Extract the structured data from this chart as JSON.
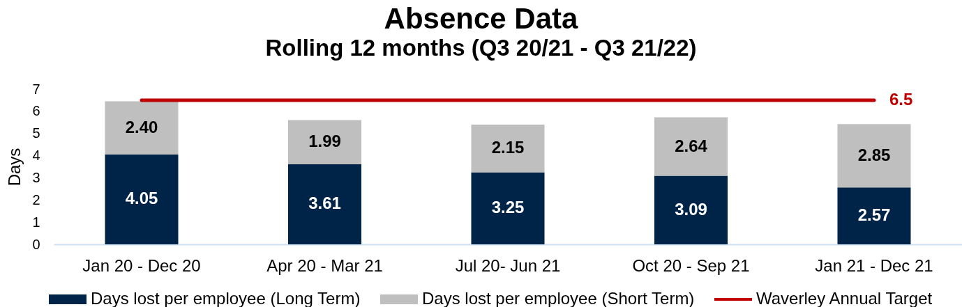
{
  "chart_data": {
    "type": "bar",
    "title": "Absence Data",
    "subtitle": "Rolling 12 months (Q3 20/21 - Q3 21/22)",
    "ylabel": "Days",
    "categories": [
      "Jan 20 - Dec 20",
      "Apr 20 - Mar 21",
      "Jul 20- Jun 21",
      "Oct 20 - Sep 21",
      "Jan 21 - Dec 21"
    ],
    "stacked": true,
    "series": [
      {
        "name": "Days lost per employee (Long Term)",
        "color": "#002448",
        "values": [
          4.05,
          3.61,
          3.25,
          3.09,
          2.57
        ],
        "value_labels": [
          "4.05",
          "3.61",
          "3.25",
          "3.09",
          "2.57"
        ]
      },
      {
        "name": "Days lost per employee (Short Term)",
        "color": "#bfbfbf",
        "values": [
          2.4,
          1.99,
          2.15,
          2.64,
          2.85
        ],
        "value_labels": [
          "2.40",
          "1.99",
          "2.15",
          "2.64",
          "2.85"
        ]
      },
      {
        "name": "Waverley Annual Target",
        "type": "line",
        "color": "#c00000",
        "values": [
          6.5,
          6.5,
          6.5,
          6.5,
          6.5
        ],
        "value_labels": [
          null,
          null,
          null,
          null,
          "6.5"
        ]
      }
    ],
    "ylim": [
      0,
      7
    ],
    "yticks": [
      0,
      1,
      2,
      3,
      4,
      5,
      6,
      7
    ],
    "grid": false,
    "legend": "bottom"
  }
}
